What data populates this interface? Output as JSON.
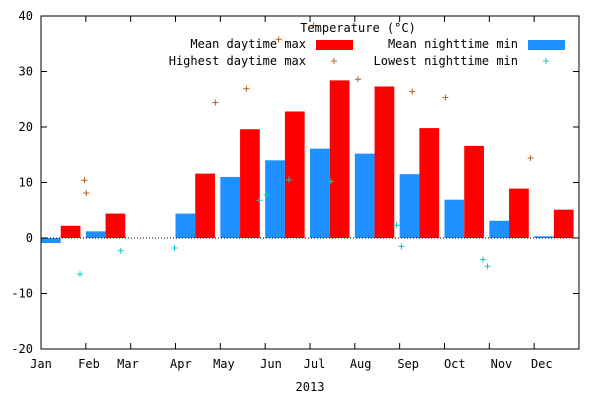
{
  "chart_data": {
    "type": "bar",
    "title": "Temperature (°C)",
    "xlabel": "2013",
    "ylabel": "",
    "ylim": [
      -20,
      40
    ],
    "yticks": [
      -20,
      -10,
      0,
      10,
      20,
      30,
      40
    ],
    "grid": false,
    "legend_position": "top-right",
    "months": [
      "Jan",
      "Feb",
      "Mar",
      "Apr",
      "May",
      "Jun",
      "Jul",
      "Aug",
      "Sep",
      "Oct",
      "Nov",
      "Dec"
    ],
    "series": [
      {
        "name": "Mean daytime max",
        "type": "bar",
        "color": "#ff0000",
        "values": [
          2.2,
          4.4,
          null,
          11.6,
          19.6,
          22.8,
          28.4,
          27.3,
          19.8,
          16.6,
          8.9,
          5.1
        ]
      },
      {
        "name": "Mean nighttime min",
        "type": "bar",
        "color": "#1e90ff",
        "values": [
          -0.9,
          1.2,
          null,
          4.4,
          11.0,
          14.0,
          16.1,
          15.2,
          11.5,
          6.9,
          3.1,
          0.3
        ]
      },
      {
        "name": "Highest daytime max",
        "type": "scatter",
        "marker": "+",
        "color": "#b8601e",
        "points": [
          [
            1.97,
            10.4
          ],
          [
            2.01,
            8.1
          ],
          [
            4.89,
            24.4
          ],
          [
            5.58,
            26.9
          ],
          [
            6.3,
            35.8
          ],
          [
            7.08,
            38.3
          ],
          [
            8.07,
            28.6
          ],
          [
            9.28,
            26.4
          ],
          [
            10.02,
            25.3
          ],
          [
            11.92,
            14.4
          ]
        ]
      },
      {
        "name": "Lowest nighttime min",
        "type": "scatter",
        "marker": "+",
        "color": "#00cccc",
        "points": [
          [
            1.87,
            -6.5
          ],
          [
            2.78,
            -2.3
          ],
          [
            3.98,
            -1.8
          ],
          [
            5.87,
            6.8
          ],
          [
            6.03,
            7.8
          ],
          [
            6.53,
            10.5
          ],
          [
            7.47,
            10.2
          ],
          [
            8.93,
            2.3
          ],
          [
            9.04,
            -1.5
          ],
          [
            10.86,
            -3.9
          ],
          [
            10.96,
            -5.1
          ]
        ]
      }
    ]
  }
}
